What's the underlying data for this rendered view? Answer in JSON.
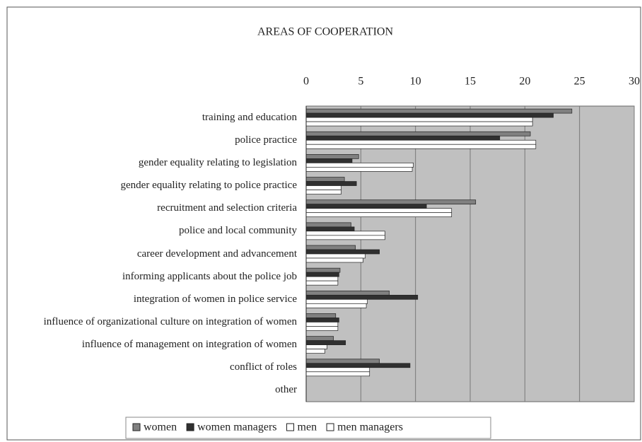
{
  "chart_data": {
    "type": "bar",
    "orientation": "horizontal",
    "title": "AREAS OF COOPERATION",
    "categories": [
      "training and education",
      "police practice",
      "gender equality relating to legislation",
      "gender equality relating to police practice",
      "recruitment and selection criteria",
      "police and local community",
      "career development and advancement",
      "informing applicants about the police job",
      "integration of women in police service",
      "influence of organizational culture on integration of women",
      "influence of management on integration of women",
      "conflict of roles",
      "other"
    ],
    "series": [
      {
        "name": "women",
        "color": "#808080",
        "values": [
          24.3,
          20.5,
          4.8,
          3.5,
          15.5,
          4.1,
          4.5,
          3.1,
          7.6,
          2.7,
          2.5,
          6.7,
          0
        ]
      },
      {
        "name": "women managers",
        "color": "#303030",
        "values": [
          22.6,
          17.7,
          4.2,
          4.6,
          11,
          4.4,
          6.7,
          3.0,
          10.2,
          3.0,
          3.6,
          9.5,
          0
        ]
      },
      {
        "name": "men",
        "color": "#ffffff",
        "values": [
          20.7,
          21,
          9.8,
          3.2,
          13.3,
          7.2,
          5.4,
          2.9,
          5.6,
          2.9,
          1.9,
          5.8,
          0
        ]
      },
      {
        "name": "men managers",
        "color": "#ffffff",
        "values": [
          20.7,
          21,
          9.7,
          3.2,
          13.3,
          7.2,
          5.2,
          2.9,
          5.5,
          2.9,
          1.7,
          5.8,
          0
        ]
      }
    ],
    "xlim": [
      0,
      30
    ],
    "xticks": [
      0,
      5,
      10,
      15,
      20,
      25,
      30
    ],
    "grid": true,
    "legend": "bottom"
  }
}
